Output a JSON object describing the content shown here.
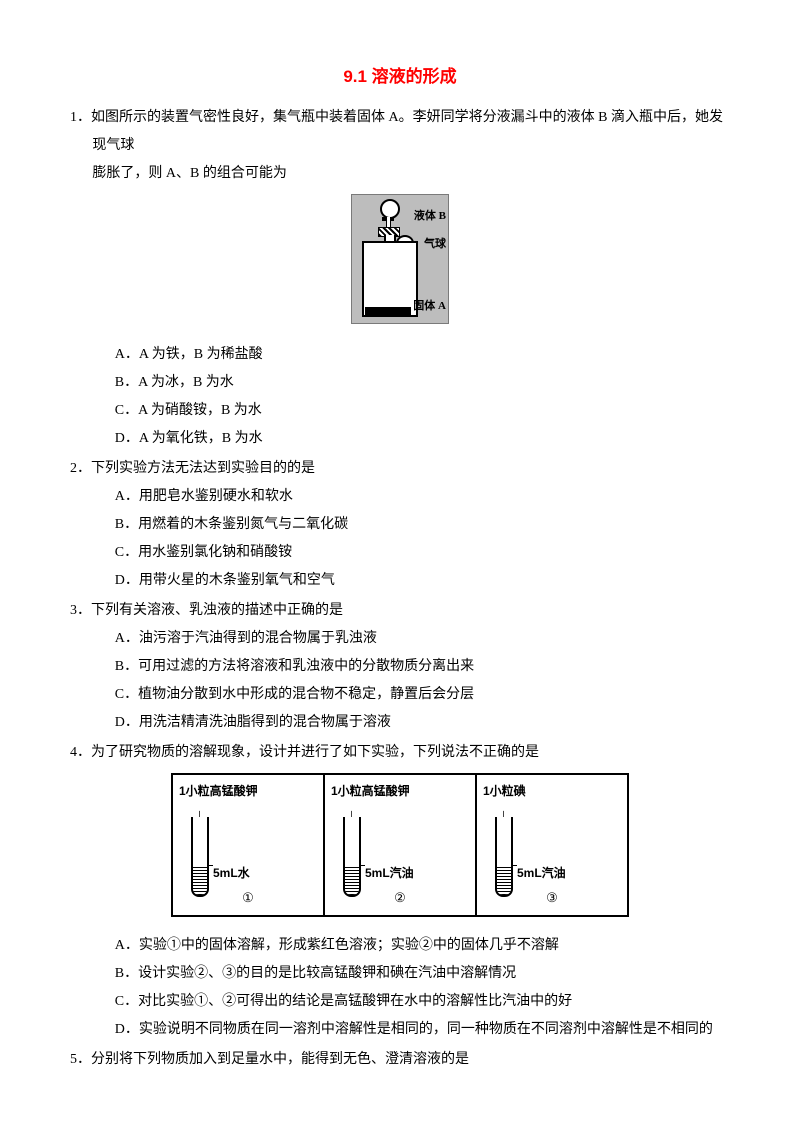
{
  "title": "9.1 溶液的形成",
  "title_color": "#ff0000",
  "text_color": "#000000",
  "background_color": "#ffffff",
  "font_size_body": 14,
  "font_size_title": 17,
  "line_height": 2.0,
  "q1": {
    "num": "1．",
    "stem": "如图所示的装置气密性良好，集气瓶中装着固体 A。李妍同学将分液漏斗中的液体 B 滴入瓶中后，她发现气球",
    "cont": "膨胀了，则 A、B 的组合可能为",
    "figure": {
      "bg_color": "#bdbdbd",
      "label_B": "液体 B",
      "label_balloon": "气球",
      "label_A": "固体 A"
    },
    "A": "A．A 为铁，B 为稀盐酸",
    "B": "B．A 为冰，B 为水",
    "C": "C．A 为硝酸铵，B 为水",
    "D": "D．A 为氧化铁，B 为水"
  },
  "q2": {
    "num": "2．",
    "stem": "下列实验方法无法达到实验目的的是",
    "A": "A．用肥皂水鉴别硬水和软水",
    "B": "B．用燃着的木条鉴别氮气与二氧化碳",
    "C": "C．用水鉴别氯化钠和硝酸铵",
    "D": "D．用带火星的木条鉴别氧气和空气"
  },
  "q3": {
    "num": "3．",
    "stem": "下列有关溶液、乳浊液的描述中正确的是",
    "A": "A．油污溶于汽油得到的混合物属于乳浊液",
    "B": "B．可用过滤的方法将溶液和乳浊液中的分散物质分离出来",
    "C": "C．植物油分散到水中形成的混合物不稳定，静置后会分层",
    "D": "D．用洗洁精清洗油脂得到的混合物属于溶液"
  },
  "q4": {
    "num": "4．",
    "stem": "为了研究物质的溶解现象，设计并进行了如下实验，下列说法不正确的是",
    "figure": {
      "cells": [
        {
          "top": "1小粒高锰酸钾",
          "liquid": "5mL水",
          "circ": "①"
        },
        {
          "top": "1小粒高锰酸钾",
          "liquid": "5mL汽油",
          "circ": "②"
        },
        {
          "top": "1小粒碘",
          "liquid": "5mL汽油",
          "circ": "③"
        }
      ],
      "border_color": "#000000",
      "bg_color": "#ffffff"
    },
    "A": "A．实验①中的固体溶解，形成紫红色溶液；实验②中的固体几乎不溶解",
    "B": "B．设计实验②、③的目的是比较高锰酸钾和碘在汽油中溶解情况",
    "C": "C．对比实验①、②可得出的结论是高锰酸钾在水中的溶解性比汽油中的好",
    "D": "D．实验说明不同物质在同一溶剂中溶解性是相同的，同一种物质在不同溶剂中溶解性是不相同的"
  },
  "q5": {
    "num": "5．",
    "stem": "分别将下列物质加入到足量水中，能得到无色、澄清溶液的是"
  }
}
